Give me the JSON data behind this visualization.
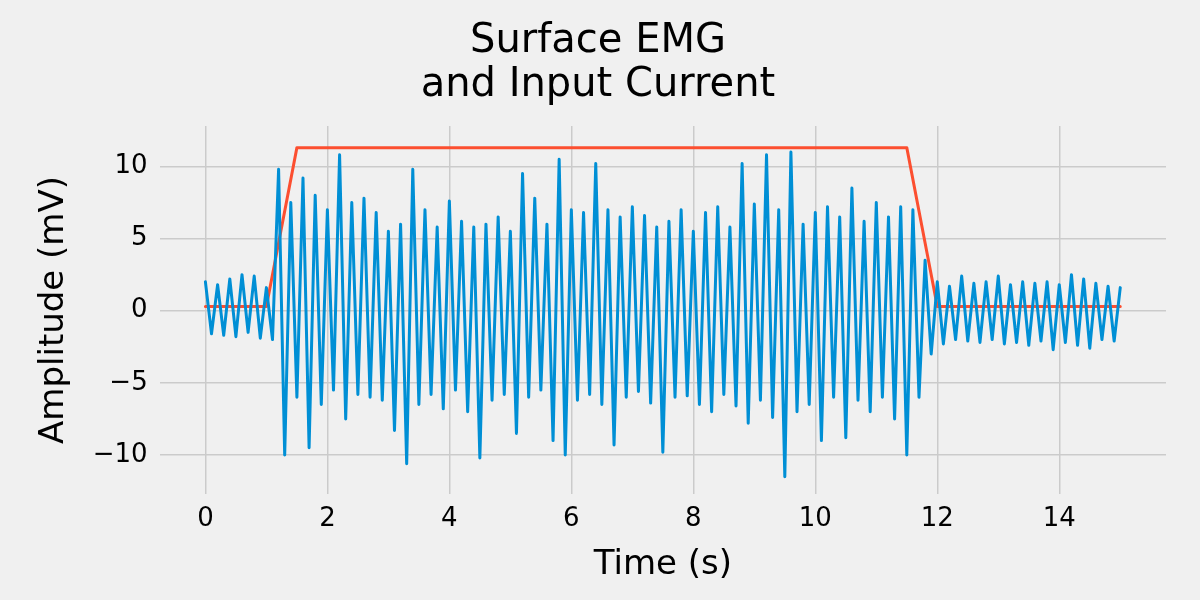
{
  "chart_data": {
    "type": "line",
    "title": "Surface EMG\nand Input Current",
    "xlabel": "Time (s)",
    "ylabel": "Amplitude (mV)",
    "xlim": [
      -0.75,
      15.75
    ],
    "xticks": [
      0,
      2,
      4,
      6,
      8,
      10,
      12,
      14
    ],
    "ylim": [
      -12.7,
      12.8
    ],
    "yticks": [
      -10,
      -5,
      0,
      5,
      10
    ],
    "grid": true,
    "legend": false,
    "marker": "none",
    "line_style": "solid",
    "series": [
      {
        "color": "#008fd5",
        "x": [
          0,
          0.1,
          0.2,
          0.3,
          0.4,
          0.5,
          0.6,
          0.7,
          0.8,
          0.9,
          1.0,
          1.1,
          1.2,
          1.3,
          1.4,
          1.5,
          1.6,
          1.7,
          1.8,
          1.9,
          2.0,
          2.1,
          2.2,
          2.3,
          2.4,
          2.5,
          2.6,
          2.7,
          2.8,
          2.9,
          3.0,
          3.1,
          3.2,
          3.3,
          3.4,
          3.5,
          3.6,
          3.7,
          3.8,
          3.9,
          4.0,
          4.1,
          4.2,
          4.3,
          4.4,
          4.5,
          4.6,
          4.7,
          4.8,
          4.9,
          5.0,
          5.1,
          5.2,
          5.3,
          5.4,
          5.5,
          5.6,
          5.7,
          5.8,
          5.9,
          6.0,
          6.1,
          6.2,
          6.3,
          6.4,
          6.5,
          6.6,
          6.7,
          6.8,
          6.9,
          7.0,
          7.1,
          7.2,
          7.3,
          7.4,
          7.5,
          7.6,
          7.7,
          7.8,
          7.9,
          8.0,
          8.1,
          8.2,
          8.3,
          8.4,
          8.5,
          8.6,
          8.7,
          8.8,
          8.9,
          9.0,
          9.1,
          9.2,
          9.3,
          9.4,
          9.5,
          9.6,
          9.7,
          9.8,
          9.9,
          10.0,
          10.1,
          10.2,
          10.3,
          10.4,
          10.5,
          10.6,
          10.7,
          10.8,
          10.9,
          11.0,
          11.1,
          11.2,
          11.3,
          11.4,
          11.5,
          11.6,
          11.7,
          11.8,
          11.9,
          12.0,
          12.1,
          12.2,
          12.3,
          12.4,
          12.5,
          12.6,
          12.7,
          12.8,
          12.9,
          13.0,
          13.1,
          13.2,
          13.3,
          13.4,
          13.5,
          13.6,
          13.7,
          13.8,
          13.9,
          14.0,
          14.1,
          14.2,
          14.3,
          14.4,
          14.5,
          14.6,
          14.7,
          14.8,
          14.9,
          15.0
        ],
        "values": [
          2.0,
          -1.6,
          1.8,
          -1.7,
          2.2,
          -1.8,
          2.5,
          -1.5,
          2.4,
          -1.9,
          1.6,
          -2.0,
          9.8,
          -10.0,
          7.5,
          -6.0,
          9.2,
          -9.5,
          8.0,
          -6.5,
          7.0,
          -5.5,
          10.8,
          -7.5,
          7.5,
          -5.8,
          7.8,
          -6.0,
          6.8,
          -6.2,
          5.5,
          -8.3,
          6.0,
          -10.6,
          9.8,
          -6.5,
          7.0,
          -5.8,
          5.8,
          -6.8,
          7.6,
          -5.5,
          6.2,
          -7.0,
          5.8,
          -10.2,
          6.0,
          -6.2,
          6.5,
          -5.8,
          5.5,
          -8.5,
          9.5,
          -6.0,
          7.8,
          -5.5,
          6.0,
          -9.0,
          10.5,
          -10.0,
          7.0,
          -6.2,
          6.8,
          -5.8,
          10.2,
          -6.5,
          7.0,
          -9.3,
          6.5,
          -6.0,
          7.2,
          -5.6,
          6.6,
          -6.4,
          5.8,
          -9.8,
          6.2,
          -6.0,
          7.0,
          -5.9,
          5.5,
          -6.5,
          6.8,
          -7.0,
          7.2,
          -5.8,
          5.8,
          -6.6,
          10.2,
          -7.8,
          7.4,
          -6.2,
          10.8,
          -7.4,
          7.0,
          -11.5,
          11.0,
          -7.0,
          6.0,
          -6.5,
          6.8,
          -9.0,
          7.2,
          -6.0,
          6.5,
          -8.8,
          8.5,
          -6.2,
          6.2,
          -7.0,
          7.5,
          -6.0,
          6.5,
          -7.5,
          7.2,
          -10.0,
          7.0,
          -6.0,
          3.5,
          -3.0,
          2.0,
          -2.3,
          1.7,
          -2.0,
          2.4,
          -2.1,
          1.9,
          -2.2,
          2.0,
          -2.0,
          2.4,
          -2.3,
          1.8,
          -2.2,
          2.0,
          -2.4,
          1.9,
          -2.1,
          2.0,
          -2.7,
          1.8,
          -2.2,
          2.5,
          -2.4,
          2.2,
          -2.6,
          1.9,
          -2.0,
          1.7,
          -2.1,
          1.6
        ]
      },
      {
        "color": "#fc4f30",
        "x": [
          0,
          1,
          1.5,
          11.5,
          12,
          15
        ],
        "values": [
          0.3,
          0.3,
          11.3,
          11.3,
          0.3,
          0.3
        ]
      }
    ]
  }
}
